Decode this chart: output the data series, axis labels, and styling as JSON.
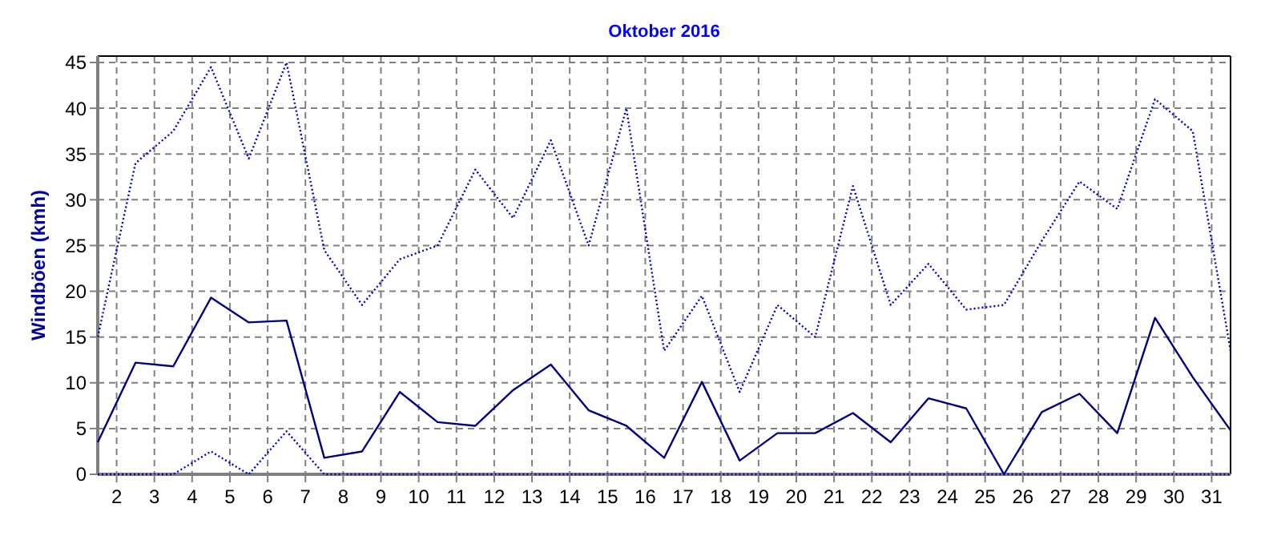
{
  "chart_data": {
    "type": "line",
    "title": "Oktober 2016",
    "ylabel": "Windböen (kmh)",
    "xlim": [
      1.5,
      31.5
    ],
    "xticks": [
      2,
      3,
      4,
      5,
      6,
      7,
      8,
      9,
      10,
      11,
      12,
      13,
      14,
      15,
      16,
      17,
      18,
      19,
      20,
      21,
      22,
      23,
      24,
      25,
      26,
      27,
      28,
      29,
      30,
      31
    ],
    "ylim": [
      0,
      45.7
    ],
    "yticks": [
      0,
      5,
      10,
      15,
      20,
      25,
      30,
      35,
      40,
      45
    ],
    "grid": true,
    "marker": "none",
    "x": [
      1.5,
      2.5,
      3.5,
      4.5,
      5.5,
      6.5,
      7.5,
      8.5,
      9.5,
      10.5,
      11.5,
      12.5,
      13.5,
      14.5,
      15.5,
      16.5,
      17.5,
      18.5,
      19.5,
      20.5,
      21.5,
      22.5,
      23.5,
      24.5,
      25.5,
      26.5,
      27.5,
      28.5,
      29.5,
      30.5,
      31.5
    ],
    "series": [
      {
        "color": "#0000cc",
        "line_style": "dotted",
        "values": [
          15,
          34,
          37.5,
          44.5,
          34.5,
          45,
          24.5,
          18.5,
          23.5,
          25,
          33.3,
          28,
          36.5,
          25,
          40,
          13.5,
          19.5,
          9,
          18.5,
          15,
          31.5,
          18.5,
          23,
          18,
          18.5,
          25.5,
          32,
          29,
          41,
          37.5,
          13.5
        ]
      },
      {
        "color": "#000080",
        "line_style": "solid",
        "values": [
          3.5,
          12.2,
          11.8,
          19.3,
          16.6,
          16.8,
          1.8,
          2.5,
          9,
          5.7,
          5.3,
          9.2,
          12,
          7,
          5.3,
          1.8,
          10.1,
          1.5,
          4.5,
          4.5,
          6.7,
          3.5,
          8.3,
          7.2,
          0,
          6.8,
          8.8,
          4.5,
          17.1,
          10.6,
          4.8
        ]
      },
      {
        "color": "#0000cc",
        "line_style": "dotted",
        "values": [
          0,
          0,
          0,
          2.5,
          0,
          4.7,
          0,
          0,
          0,
          0,
          0,
          0,
          0,
          0,
          0,
          0,
          0,
          0,
          0,
          0,
          0,
          0,
          0,
          0,
          0,
          0,
          0,
          0,
          0,
          0,
          0
        ]
      }
    ]
  }
}
